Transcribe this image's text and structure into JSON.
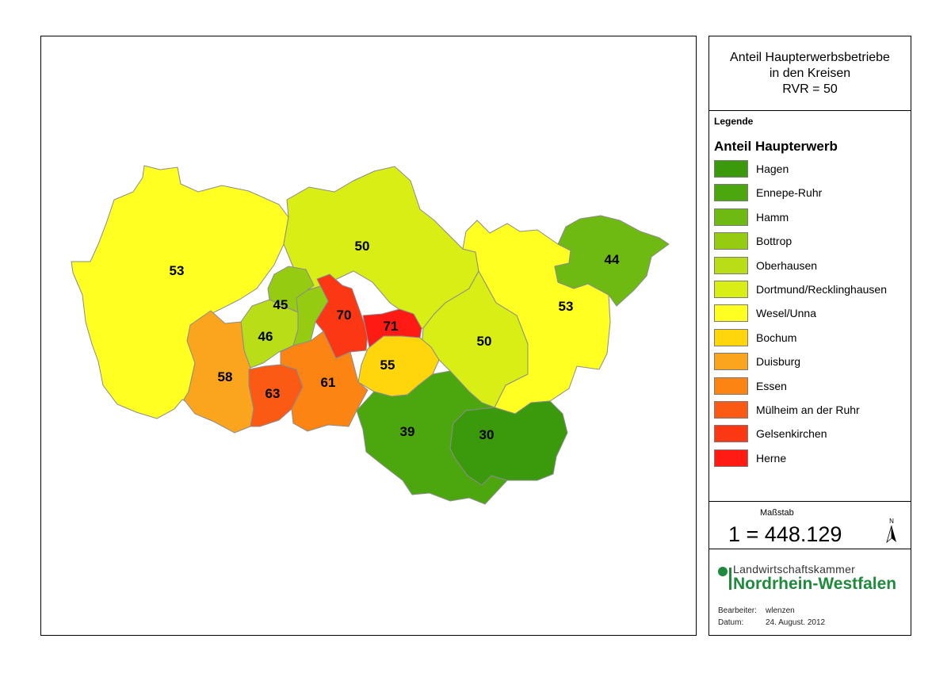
{
  "title": {
    "line1": "Anteil Haupterwerbsbetriebe",
    "line2": "in den Kreisen",
    "line3": "RVR = 50"
  },
  "legend": {
    "heading": "Legende",
    "title": "Anteil Haupterwerb",
    "items": [
      {
        "label": "Hagen",
        "color": "#3a9a0c"
      },
      {
        "label": "Ennepe-Ruhr",
        "color": "#4ca70e"
      },
      {
        "label": "Hamm",
        "color": "#6eba12"
      },
      {
        "label": "Bottrop",
        "color": "#95cc12"
      },
      {
        "label": "Oberhausen",
        "color": "#b9dd17"
      },
      {
        "label": "Dortmund/Recklinghausen",
        "color": "#d9ee14"
      },
      {
        "label": "Wesel/Unna",
        "color": "#ffff22"
      },
      {
        "label": "Bochum",
        "color": "#ffd60c"
      },
      {
        "label": "Duisburg",
        "color": "#fba51e"
      },
      {
        "label": "Essen",
        "color": "#fb8413"
      },
      {
        "label": "Mülheim an der Ruhr",
        "color": "#fb5a14"
      },
      {
        "label": "Gelsenkirchen",
        "color": "#fb3714"
      },
      {
        "label": "Herne",
        "color": "#ff1a14"
      }
    ]
  },
  "scale": {
    "heading": "Maßstab",
    "value": "1 = 448.129",
    "north_label": "N"
  },
  "logo": {
    "line1": "Landwirtschaftskammer",
    "line2": "Nordrhein-Westfalen"
  },
  "meta": {
    "author_label": "Bearbeiter:",
    "author": "wlenzen",
    "date_label": "Datum:",
    "date": "24. August. 2012"
  },
  "map": {
    "regions": [
      {
        "name": "Wesel",
        "value": "53",
        "color": "#ffff22"
      },
      {
        "name": "Recklinghausen",
        "value": "50",
        "color": "#d9ee14"
      },
      {
        "name": "Unna",
        "value": "53",
        "color": "#ffff22"
      },
      {
        "name": "Hamm",
        "value": "44",
        "color": "#6eba12"
      },
      {
        "name": "Dortmund",
        "value": "50",
        "color": "#d9ee14"
      },
      {
        "name": "Bottrop",
        "value": "45",
        "color": "#95cc12"
      },
      {
        "name": "Oberhausen",
        "value": "46",
        "color": "#b9dd17"
      },
      {
        "name": "Gelsenkirchen",
        "value": "70",
        "color": "#fb3714"
      },
      {
        "name": "Herne",
        "value": "71",
        "color": "#ff1a14"
      },
      {
        "name": "Bochum",
        "value": "55",
        "color": "#ffd60c"
      },
      {
        "name": "Duisburg",
        "value": "58",
        "color": "#fba51e"
      },
      {
        "name": "Mülheim an der Ruhr",
        "value": "63",
        "color": "#fb5a14"
      },
      {
        "name": "Essen",
        "value": "61",
        "color": "#fb8413"
      },
      {
        "name": "Ennepe-Ruhr",
        "value": "39",
        "color": "#4ca70e"
      },
      {
        "name": "Hagen",
        "value": "30",
        "color": "#3a9a0c"
      }
    ]
  }
}
